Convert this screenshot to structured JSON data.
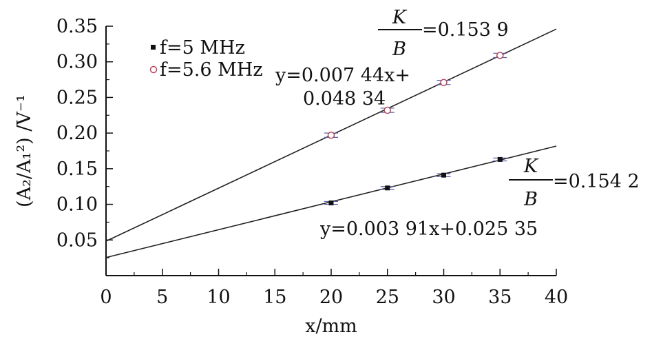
{
  "chart_data": {
    "type": "scatter",
    "xlabel": "x/mm",
    "ylabel": "(A₂/A₁²) /V⁻¹",
    "xlim": [
      0,
      40
    ],
    "ylim": [
      0,
      0.35
    ],
    "xticks": [
      0,
      5,
      10,
      15,
      20,
      25,
      30,
      35,
      40
    ],
    "yticks": [
      0.05,
      0.1,
      0.15,
      0.2,
      0.25,
      0.3,
      0.35
    ],
    "xtick_labels": [
      "0",
      "5",
      "10",
      "15",
      "20",
      "25",
      "30",
      "35",
      "40"
    ],
    "ytick_labels": [
      "0.05",
      "0.10",
      "0.15",
      "0.20",
      "0.25",
      "0.30",
      "0.35"
    ],
    "grid": false,
    "legend_position": "top-left",
    "series": [
      {
        "name": "f=5 MHz",
        "marker": "filled-square",
        "color": "#111111",
        "x": [
          20,
          25,
          30,
          35
        ],
        "y": [
          0.102,
          0.123,
          0.141,
          0.163
        ],
        "error": 0.002,
        "fit": {
          "slope": 0.00391,
          "intercept": 0.02535
        },
        "fit_label": "y=0.003 91x+0.025 35",
        "ratio_label": "=0.154 2"
      },
      {
        "name": "f=5.6 MHz",
        "marker": "open-circle",
        "color": "#b5495b",
        "x": [
          20,
          25,
          30,
          35
        ],
        "y": [
          0.197,
          0.232,
          0.271,
          0.309
        ],
        "error": 0.003,
        "fit": {
          "slope": 0.00744,
          "intercept": 0.04834
        },
        "fit_label_line1": "y=0.007 44x+",
        "fit_label_line2": "0.048 34",
        "ratio_label": "=0.153 9"
      }
    ],
    "ratio_numerator": "K",
    "ratio_denominator": "B"
  }
}
